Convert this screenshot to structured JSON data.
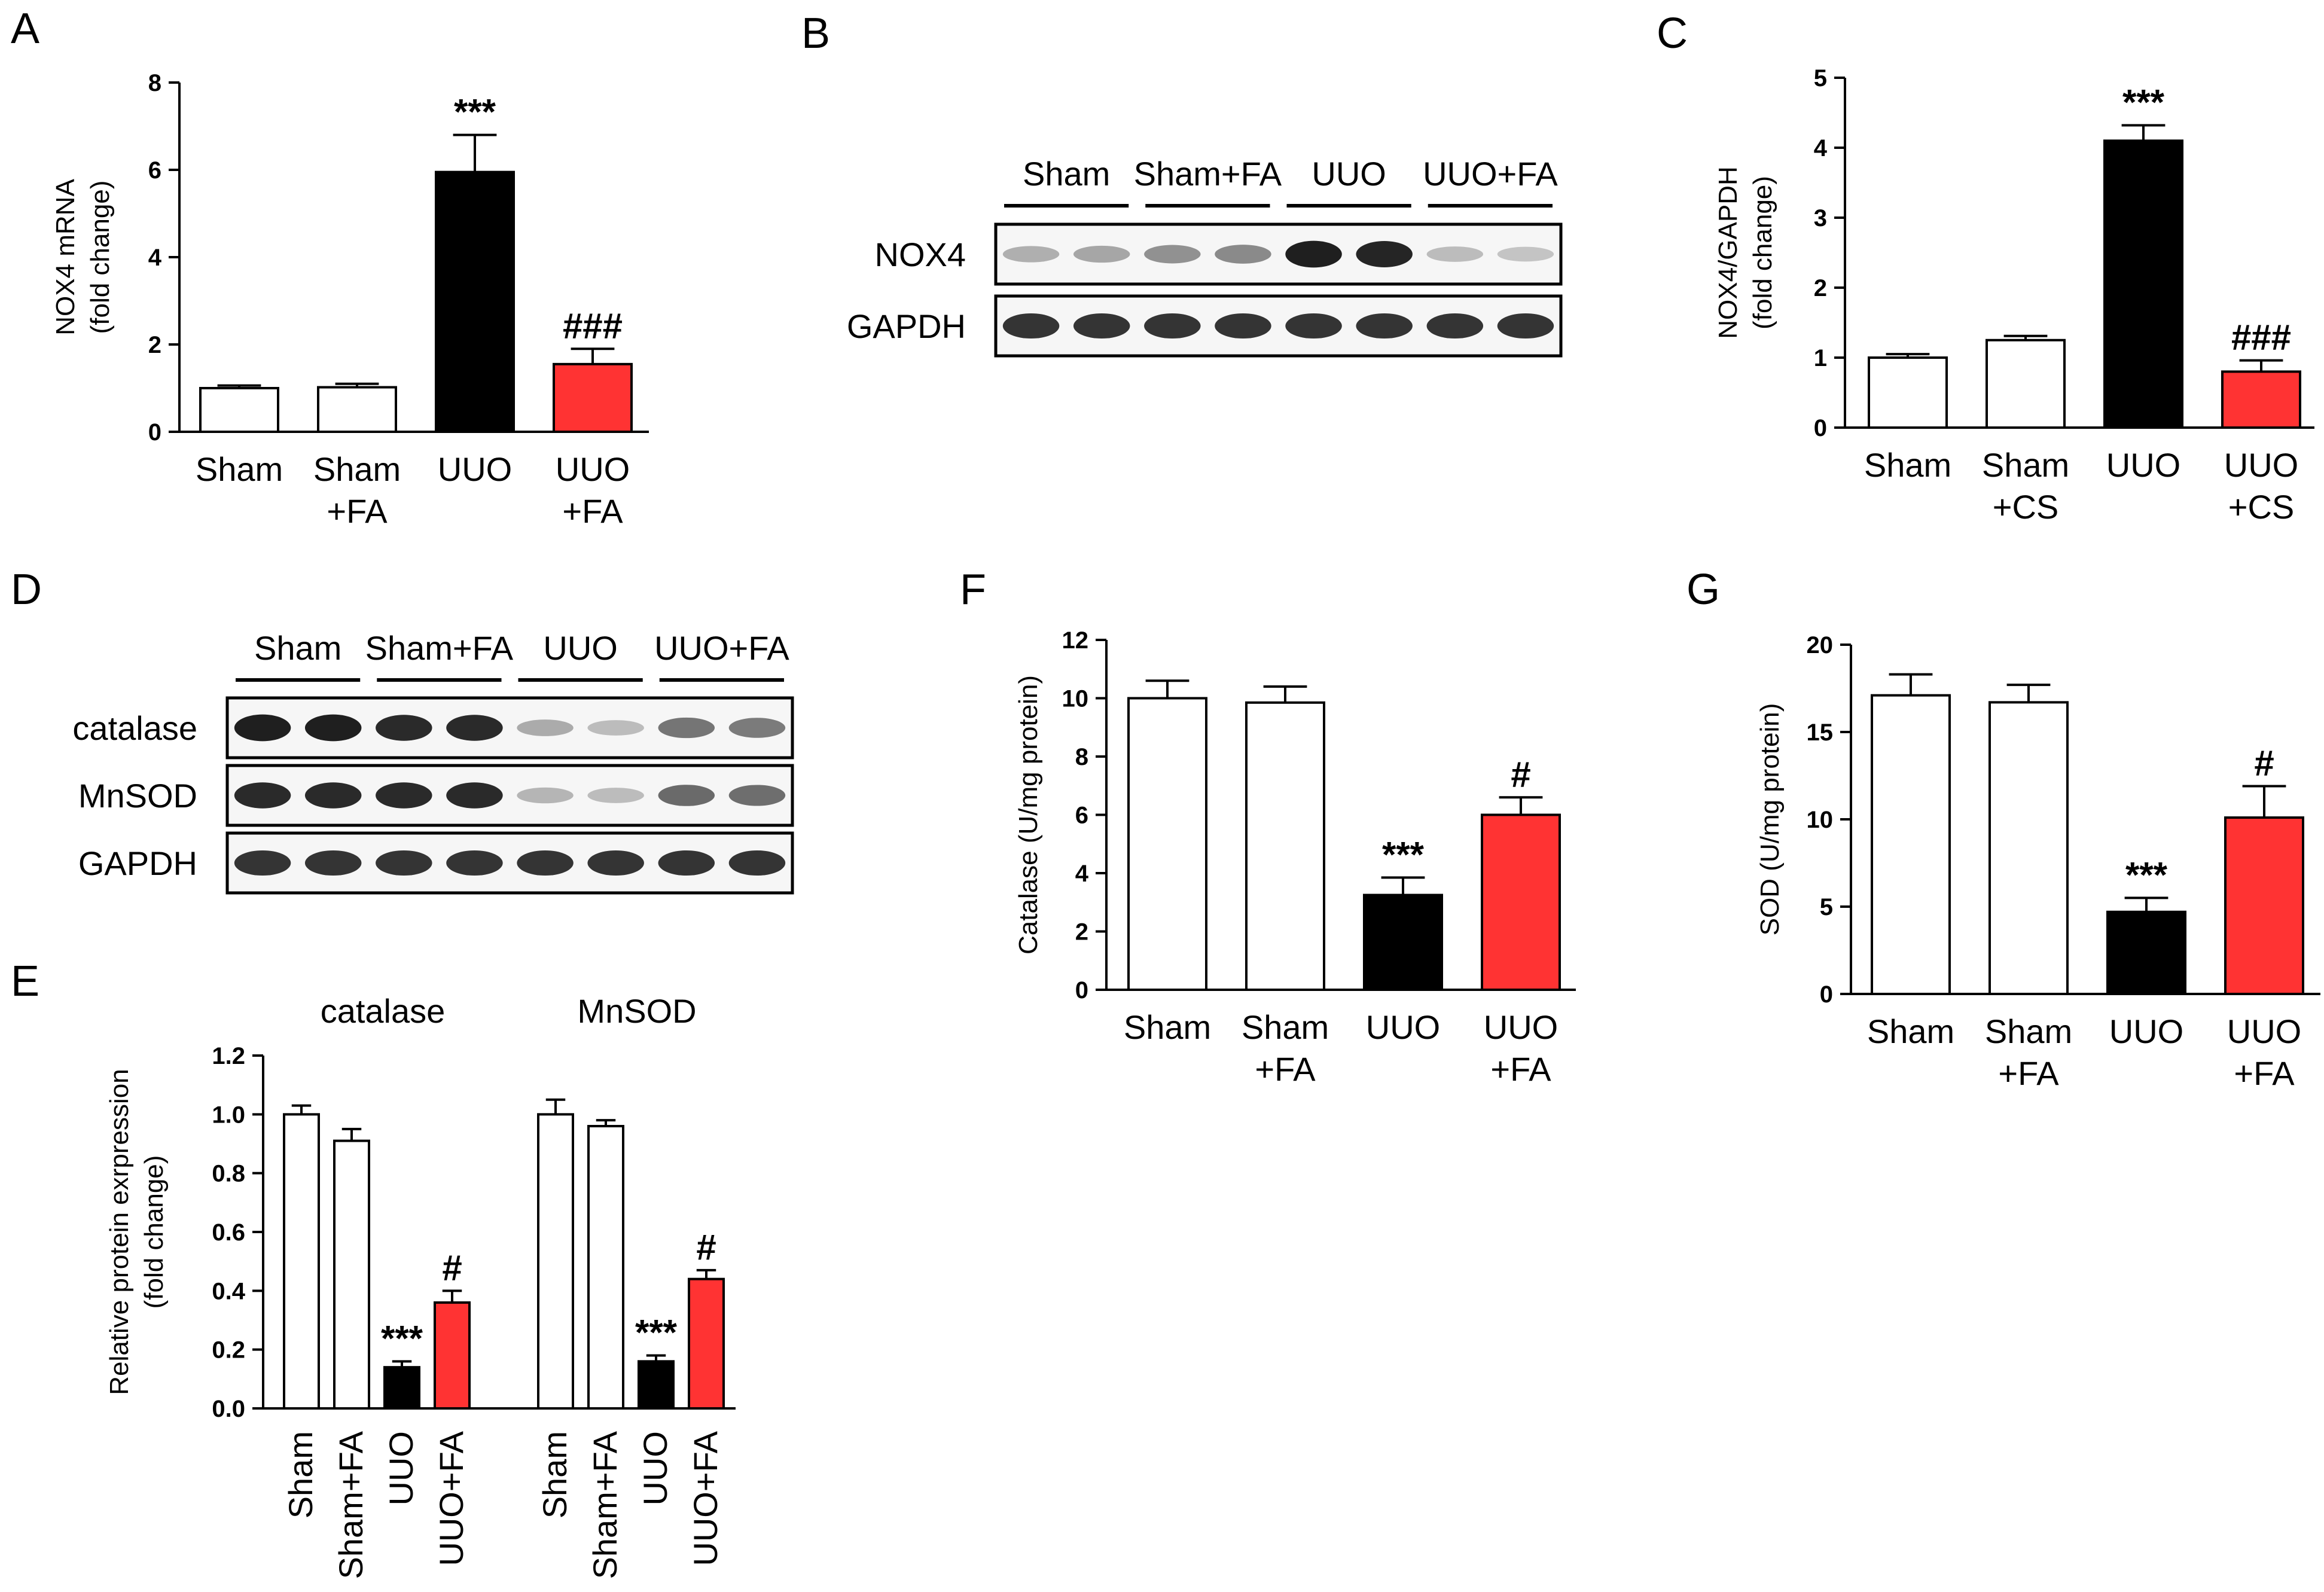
{
  "colors": {
    "white": "#ffffff",
    "black": "#000000",
    "red": "#ff3333",
    "blot_bg": "#f6f6f6"
  },
  "blot_B": {
    "label": "B",
    "groups": [
      "Sham",
      "Sham+FA",
      "UUO",
      "UUO+FA"
    ],
    "rows": [
      {
        "name": "NOX4",
        "intensity": [
          0.28,
          0.32,
          0.42,
          0.45,
          0.95,
          0.92,
          0.22,
          0.18
        ]
      },
      {
        "name": "GAPDH",
        "intensity": [
          0.85,
          0.85,
          0.85,
          0.85,
          0.85,
          0.85,
          0.85,
          0.85
        ]
      }
    ]
  },
  "blot_D": {
    "label": "D",
    "groups": [
      "Sham",
      "Sham+FA",
      "UUO",
      "UUO+FA"
    ],
    "rows": [
      {
        "name": "catalase",
        "intensity": [
          0.95,
          0.95,
          0.9,
          0.9,
          0.3,
          0.22,
          0.55,
          0.52
        ]
      },
      {
        "name": "MnSOD",
        "intensity": [
          0.9,
          0.9,
          0.9,
          0.9,
          0.25,
          0.22,
          0.6,
          0.58
        ]
      },
      {
        "name": "GAPDH",
        "intensity": [
          0.85,
          0.85,
          0.85,
          0.85,
          0.85,
          0.85,
          0.85,
          0.85
        ]
      }
    ]
  },
  "chart_data": [
    {
      "id": "A",
      "label": "A",
      "type": "bar",
      "ylabel": [
        "NOX4 mRNA",
        "(fold change)"
      ],
      "ylim": [
        0,
        8
      ],
      "yticks": [
        "0",
        "2",
        "4",
        "6",
        "8"
      ],
      "categories": [
        [
          "Sham"
        ],
        [
          "Sham",
          "+FA"
        ],
        [
          "UUO"
        ],
        [
          "UUO",
          "+FA"
        ]
      ],
      "values": [
        1.0,
        1.02,
        5.95,
        1.55
      ],
      "errors": [
        0.06,
        0.08,
        0.85,
        0.35
      ],
      "colors": [
        "white",
        "white",
        "black",
        "red"
      ],
      "annotations": [
        "",
        "",
        "***",
        "###"
      ]
    },
    {
      "id": "C",
      "label": "C",
      "type": "bar",
      "ylabel": [
        "NOX4/GAPDH",
        "(fold change)"
      ],
      "ylim": [
        0,
        5
      ],
      "yticks": [
        "0",
        "1",
        "2",
        "3",
        "4",
        "5"
      ],
      "categories": [
        [
          "Sham"
        ],
        [
          "Sham",
          "+CS"
        ],
        [
          "UUO"
        ],
        [
          "UUO",
          "+CS"
        ]
      ],
      "values": [
        1.0,
        1.25,
        4.1,
        0.8
      ],
      "errors": [
        0.05,
        0.06,
        0.22,
        0.16
      ],
      "colors": [
        "white",
        "white",
        "black",
        "red"
      ],
      "annotations": [
        "",
        "",
        "***",
        "###"
      ]
    },
    {
      "id": "E",
      "label": "E",
      "type": "bar",
      "ylabel": [
        "Relative protein exrpression",
        "(fold change)"
      ],
      "ylim": [
        0,
        1.2
      ],
      "yticks": [
        "0.0",
        "0.2",
        "0.4",
        "0.6",
        "0.8",
        "1.0",
        "1.2"
      ],
      "groups": [
        {
          "title": "catalase",
          "categories": [
            "Sham",
            "Sham+FA",
            "UUO",
            "UUO+FA"
          ],
          "values": [
            1.0,
            0.91,
            0.14,
            0.36
          ],
          "errors": [
            0.03,
            0.04,
            0.02,
            0.04
          ],
          "colors": [
            "white",
            "white",
            "black",
            "red"
          ],
          "annotations": [
            "",
            "",
            "***",
            "#"
          ]
        },
        {
          "title": "MnSOD",
          "categories": [
            "Sham",
            "Sham+FA",
            "UUO",
            "UUO+FA"
          ],
          "values": [
            1.0,
            0.96,
            0.16,
            0.44
          ],
          "errors": [
            0.05,
            0.02,
            0.02,
            0.03
          ],
          "colors": [
            "white",
            "white",
            "black",
            "red"
          ],
          "annotations": [
            "",
            "",
            "***",
            "#"
          ]
        }
      ]
    },
    {
      "id": "F",
      "label": "F",
      "type": "bar",
      "ylabel": [
        "Catalase (U/mg protein)"
      ],
      "ylim": [
        0,
        12
      ],
      "yticks": [
        "0",
        "2",
        "4",
        "6",
        "8",
        "10",
        "12"
      ],
      "categories": [
        [
          "Sham"
        ],
        [
          "Sham",
          "+FA"
        ],
        [
          "UUO"
        ],
        [
          "UUO",
          "+FA"
        ]
      ],
      "values": [
        10.0,
        9.85,
        3.25,
        6.0
      ],
      "errors": [
        0.6,
        0.55,
        0.6,
        0.6
      ],
      "colors": [
        "white",
        "white",
        "black",
        "red"
      ],
      "annotations": [
        "",
        "",
        "***",
        "#"
      ]
    },
    {
      "id": "G",
      "label": "G",
      "type": "bar",
      "ylabel": [
        "SOD (U/mg protein)"
      ],
      "ylim": [
        0,
        20
      ],
      "yticks": [
        "0",
        "5",
        "10",
        "15",
        "20"
      ],
      "categories": [
        [
          "Sham"
        ],
        [
          "Sham",
          "+FA"
        ],
        [
          "UUO"
        ],
        [
          "UUO",
          "+FA"
        ]
      ],
      "values": [
        17.1,
        16.7,
        4.7,
        10.1
      ],
      "errors": [
        1.2,
        1.0,
        0.8,
        1.8
      ],
      "colors": [
        "white",
        "white",
        "black",
        "red"
      ],
      "annotations": [
        "",
        "",
        "***",
        "#"
      ]
    }
  ]
}
